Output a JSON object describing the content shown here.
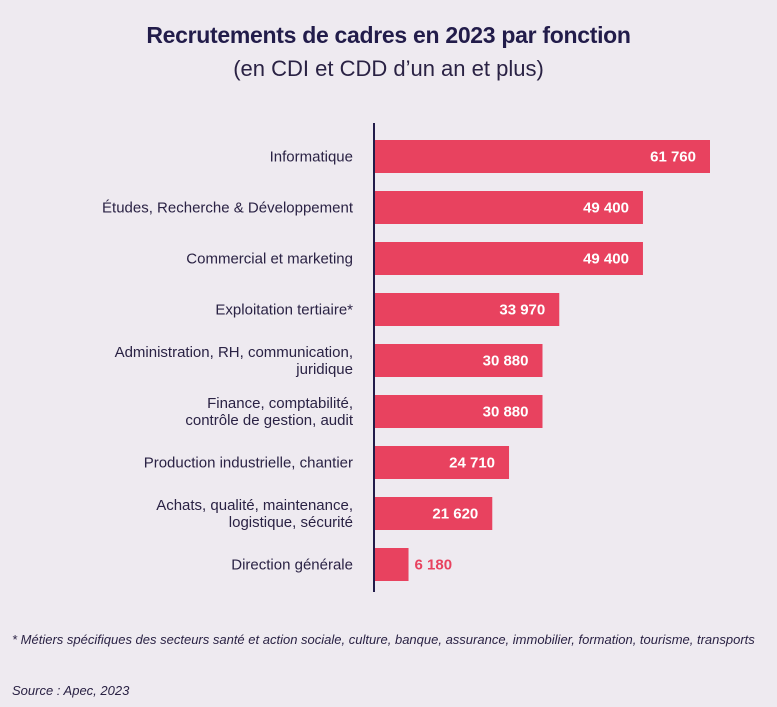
{
  "chart_data": {
    "type": "bar",
    "orientation": "horizontal",
    "title": "Recrutements de cadres en 2023 par fonction",
    "subtitle": "(en CDI et CDD d’un an et plus)",
    "categories": [
      [
        "Informatique"
      ],
      [
        "Études, Recherche & Développement"
      ],
      [
        "Commercial et marketing"
      ],
      [
        "Exploitation tertiaire*"
      ],
      [
        "Administration, RH, communication,",
        "juridique"
      ],
      [
        "Finance, comptabilité,",
        "contrôle de gestion, audit"
      ],
      [
        "Production industrielle, chantier"
      ],
      [
        "Achats, qualité, maintenance,",
        "logistique, sécurité"
      ],
      [
        "Direction générale"
      ]
    ],
    "values": [
      61760,
      49400,
      49400,
      33970,
      30880,
      30880,
      24710,
      21620,
      6180
    ],
    "value_labels": [
      "61 760",
      "49 400",
      "49 400",
      "33 970",
      "30 880",
      "30 880",
      "24 710",
      "21 620",
      "6 180"
    ],
    "xlim": [
      0,
      61760
    ],
    "grid": false,
    "bar_color": "#e8425f",
    "axis_color": "#221c4a"
  },
  "footnote": "* Métiers spécifiques des secteurs santé et action sociale, culture, banque, assurance, immobilier, formation, tourisme, transports",
  "source": "Source : Apec, 2023"
}
